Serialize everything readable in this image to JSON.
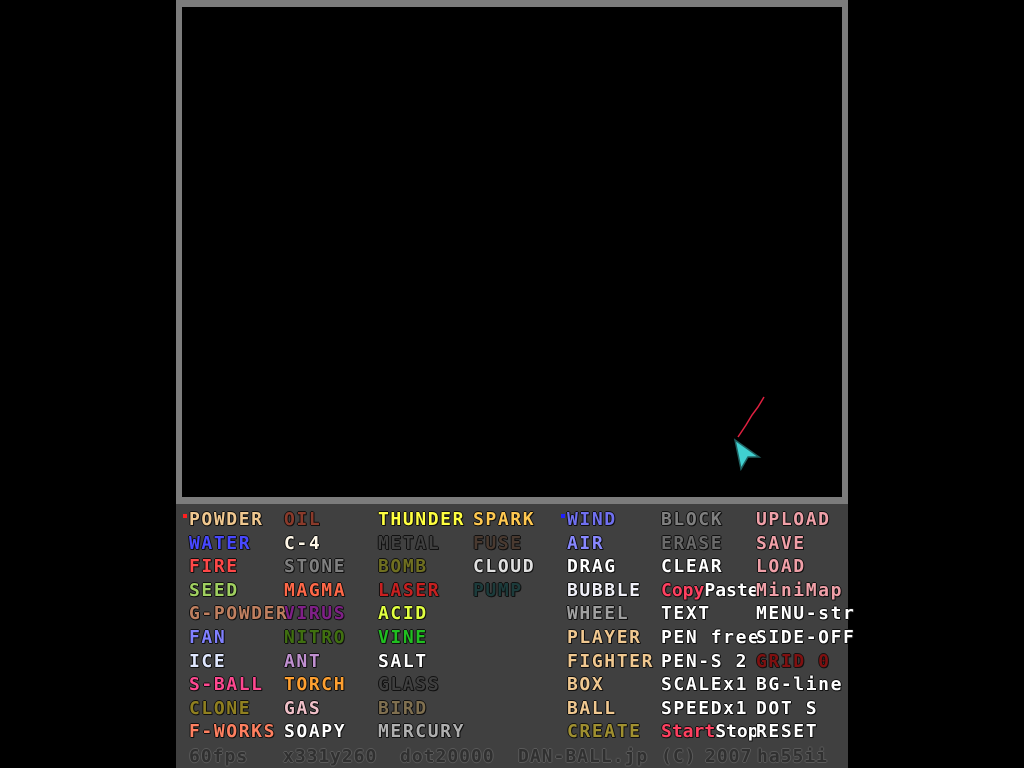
{
  "menu": {
    "rows": [
      [
        {
          "t": "POWDER",
          "c": "#f0c890",
          "sel": "#ff2020"
        },
        {
          "t": "OIL",
          "c": "#8a3a2a"
        },
        {
          "t": "THUNDER",
          "c": "#ffff40"
        },
        {
          "t": "SPARK",
          "c": "#ffc850"
        },
        {
          "t": "WIND",
          "c": "#7070f0",
          "sel": "#2020ff"
        },
        {
          "t": "BLOCK",
          "c": "#808080"
        },
        {
          "t": "UPLOAD",
          "c": "#f0a0a8"
        }
      ],
      [
        {
          "t": "WATER",
          "c": "#4848ff"
        },
        {
          "t": "C-4",
          "c": "#fff8e8"
        },
        {
          "t": "METAL",
          "c": "#404040"
        },
        {
          "t": "FUSE",
          "c": "#4a3a30"
        },
        {
          "t": "AIR",
          "c": "#8888ff"
        },
        {
          "t": "ERASE",
          "c": "#6a6a6a"
        },
        {
          "t": "SAVE",
          "c": "#f0a0a8"
        }
      ],
      [
        {
          "t": "FIRE",
          "c": "#ff4848"
        },
        {
          "t": "STONE",
          "c": "#808080"
        },
        {
          "t": "BOMB",
          "c": "#707020"
        },
        {
          "t": "CLOUD",
          "c": "#e0e0e0"
        },
        {
          "t": "DRAG",
          "c": "#ffffff"
        },
        {
          "t": "CLEAR",
          "c": "#ffffff"
        },
        {
          "t": "LOAD",
          "c": "#f0a0a8"
        }
      ],
      [
        {
          "t": "SEED",
          "c": "#a0d060"
        },
        {
          "t": "MAGMA",
          "c": "#ff6848"
        },
        {
          "t": "LASER",
          "c": "#c82020"
        },
        {
          "t": "PUMP",
          "c": "#1c3c3c"
        },
        {
          "t": "BUBBLE",
          "c": "#f0f0f8"
        },
        {
          "t": "Copy",
          "c": "#ff4060",
          "t2": "Paste",
          "c2": "#ffffff"
        },
        {
          "t": "MiniMap",
          "c": "#f0a0a8"
        }
      ],
      [
        {
          "t": "G-POWDER",
          "c": "#c08060"
        },
        {
          "t": "VIRUS",
          "c": "#802088"
        },
        {
          "t": "ACID",
          "c": "#e0ff40"
        },
        {
          "t": "",
          "c": ""
        },
        {
          "t": "WHEEL",
          "c": "#a0a0a0"
        },
        {
          "t": "TEXT",
          "c": "#ffffff"
        },
        {
          "t": "MENU-str",
          "c": "#ffffff"
        }
      ],
      [
        {
          "t": "FAN",
          "c": "#8080ff"
        },
        {
          "t": "NITRO",
          "c": "#407010"
        },
        {
          "t": "VINE",
          "c": "#20c020"
        },
        {
          "t": "",
          "c": ""
        },
        {
          "t": "PLAYER",
          "c": "#f0c890"
        },
        {
          "t": "PEN free",
          "c": "#ffffff"
        },
        {
          "t": "SIDE-OFF",
          "c": "#ffffff"
        }
      ],
      [
        {
          "t": "ICE",
          "c": "#e0e8ff"
        },
        {
          "t": "ANT",
          "c": "#c090d0"
        },
        {
          "t": "SALT",
          "c": "#ffffff"
        },
        {
          "t": "",
          "c": ""
        },
        {
          "t": "FIGHTER",
          "c": "#f0c890"
        },
        {
          "t": "PEN-S 2",
          "c": "#ffffff"
        },
        {
          "t": "GRID 0",
          "c": "#801010"
        }
      ],
      [
        {
          "t": "S-BALL",
          "c": "#ff4890"
        },
        {
          "t": "TORCH",
          "c": "#ffa030"
        },
        {
          "t": "GLASS",
          "c": "#404040"
        },
        {
          "t": "",
          "c": ""
        },
        {
          "t": "BOX",
          "c": "#f0c890"
        },
        {
          "t": "SCALEx1",
          "c": "#ffffff"
        },
        {
          "t": "BG-line",
          "c": "#ffffff"
        }
      ],
      [
        {
          "t": "CLONE",
          "c": "#908020"
        },
        {
          "t": "GAS",
          "c": "#f0c0c8"
        },
        {
          "t": "BIRD",
          "c": "#807050"
        },
        {
          "t": "",
          "c": ""
        },
        {
          "t": "BALL",
          "c": "#f0c890"
        },
        {
          "t": "SPEEDx1",
          "c": "#ffffff"
        },
        {
          "t": "DOT S",
          "c": "#ffffff"
        }
      ],
      [
        {
          "t": "F-WORKS",
          "c": "#ff8060"
        },
        {
          "t": "SOAPY",
          "c": "#ffffff"
        },
        {
          "t": "MERCURY",
          "c": "#b0b0b0"
        },
        {
          "t": "",
          "c": ""
        },
        {
          "t": "CREATE",
          "c": "#a09030"
        },
        {
          "t": "Start",
          "c": "#ff4060",
          "t2": "Stop",
          "c2": "#ffffff"
        },
        {
          "t": "RESET",
          "c": "#ffffff"
        }
      ]
    ]
  },
  "status": {
    "fps": "60fps",
    "x": "x331",
    "y": "y260",
    "dot": "dot20000",
    "site": "DAN-BALL.jp",
    "copyright": "(C)",
    "year": "2007",
    "author": "ha55ii"
  },
  "cursor": {
    "icon": "arrow-cursor-icon",
    "color": "#40d0d0",
    "trail_color": "#e02040"
  }
}
